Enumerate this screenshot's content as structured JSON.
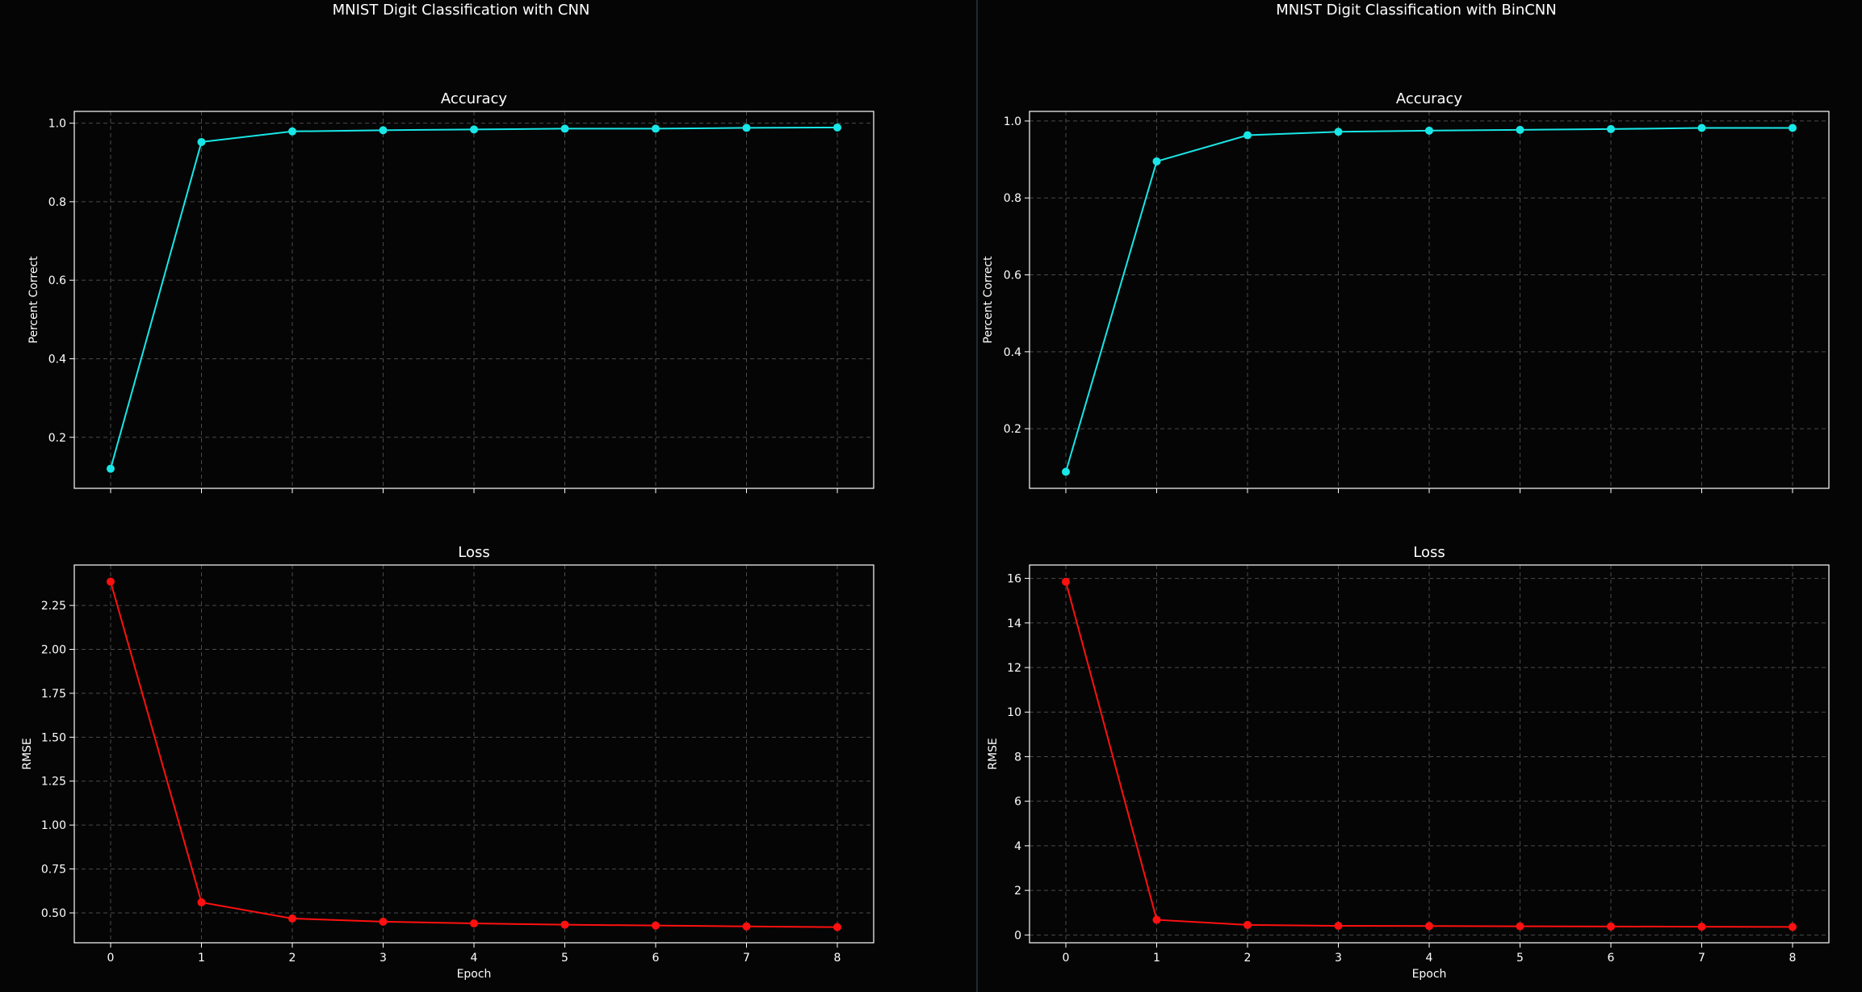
{
  "panels": [
    {
      "title": "MNIST Digit Classification with CNN"
    },
    {
      "title": "MNIST Digit Classification with BinCNN"
    }
  ],
  "colors": {
    "background": "#050505",
    "accuracy_line": "#19e6e6",
    "loss_line": "#ff1010",
    "grid": "#4a4a4a",
    "text": "#ffffff"
  },
  "chart_data": [
    {
      "type": "line",
      "title": "Accuracy",
      "xlabel": "",
      "ylabel": "Percent Correct",
      "x": [
        0,
        1,
        2,
        3,
        4,
        5,
        6,
        7,
        8
      ],
      "series": [
        {
          "values": [
            0.12,
            0.952,
            0.979,
            0.982,
            0.984,
            0.986,
            0.986,
            0.988,
            0.989
          ]
        }
      ],
      "xlim": [
        -0.4,
        8.4
      ],
      "ylim": [
        0.07,
        1.03
      ],
      "yticks": [
        0.2,
        0.4,
        0.6,
        0.8,
        1.0
      ],
      "ytick_labels": [
        "0.2",
        "0.4",
        "0.6",
        "0.8",
        "1.0"
      ],
      "xticks": [
        0,
        1,
        2,
        3,
        4,
        5,
        6,
        7,
        8
      ],
      "xtick_labels": [],
      "grid": true,
      "color": "accuracy_line"
    },
    {
      "type": "line",
      "title": "Loss",
      "xlabel": "Epoch",
      "ylabel": "RMSE",
      "x": [
        0,
        1,
        2,
        3,
        4,
        5,
        6,
        7,
        8
      ],
      "series": [
        {
          "values": [
            2.385,
            0.56,
            0.468,
            0.45,
            0.44,
            0.433,
            0.428,
            0.423,
            0.419
          ]
        }
      ],
      "xlim": [
        -0.4,
        8.4
      ],
      "ylim": [
        0.33,
        2.48
      ],
      "yticks": [
        0.5,
        0.75,
        1.0,
        1.25,
        1.5,
        1.75,
        2.0,
        2.25
      ],
      "ytick_labels": [
        "0.50",
        "0.75",
        "1.00",
        "1.25",
        "1.50",
        "1.75",
        "2.00",
        "2.25"
      ],
      "xticks": [
        0,
        1,
        2,
        3,
        4,
        5,
        6,
        7,
        8
      ],
      "xtick_labels": [
        "0",
        "1",
        "2",
        "3",
        "4",
        "5",
        "6",
        "7",
        "8"
      ],
      "grid": true,
      "color": "loss_line"
    },
    {
      "type": "line",
      "title": "Accuracy",
      "xlabel": "",
      "ylabel": "Percent Correct",
      "x": [
        0,
        1,
        2,
        3,
        4,
        5,
        6,
        7,
        8
      ],
      "series": [
        {
          "values": [
            0.088,
            0.895,
            0.963,
            0.972,
            0.975,
            0.977,
            0.979,
            0.982,
            0.982
          ]
        }
      ],
      "xlim": [
        -0.4,
        8.4
      ],
      "ylim": [
        0.045,
        1.025
      ],
      "yticks": [
        0.2,
        0.4,
        0.6,
        0.8,
        1.0
      ],
      "ytick_labels": [
        "0.2",
        "0.4",
        "0.6",
        "0.8",
        "1.0"
      ],
      "xticks": [
        0,
        1,
        2,
        3,
        4,
        5,
        6,
        7,
        8
      ],
      "xtick_labels": [],
      "grid": true,
      "color": "accuracy_line"
    },
    {
      "type": "line",
      "title": "Loss",
      "xlabel": "Epoch",
      "ylabel": "RMSE",
      "x": [
        0,
        1,
        2,
        3,
        4,
        5,
        6,
        7,
        8
      ],
      "series": [
        {
          "values": [
            15.85,
            0.68,
            0.45,
            0.41,
            0.4,
            0.39,
            0.38,
            0.37,
            0.36
          ]
        }
      ],
      "xlim": [
        -0.4,
        8.4
      ],
      "ylim": [
        -0.35,
        16.6
      ],
      "yticks": [
        0,
        2,
        4,
        6,
        8,
        10,
        12,
        14,
        16
      ],
      "ytick_labels": [
        "0",
        "2",
        "4",
        "6",
        "8",
        "10",
        "12",
        "14",
        "16"
      ],
      "xticks": [
        0,
        1,
        2,
        3,
        4,
        5,
        6,
        7,
        8
      ],
      "xtick_labels": [
        "0",
        "1",
        "2",
        "3",
        "4",
        "5",
        "6",
        "7",
        "8"
      ],
      "grid": true,
      "color": "loss_line"
    }
  ]
}
